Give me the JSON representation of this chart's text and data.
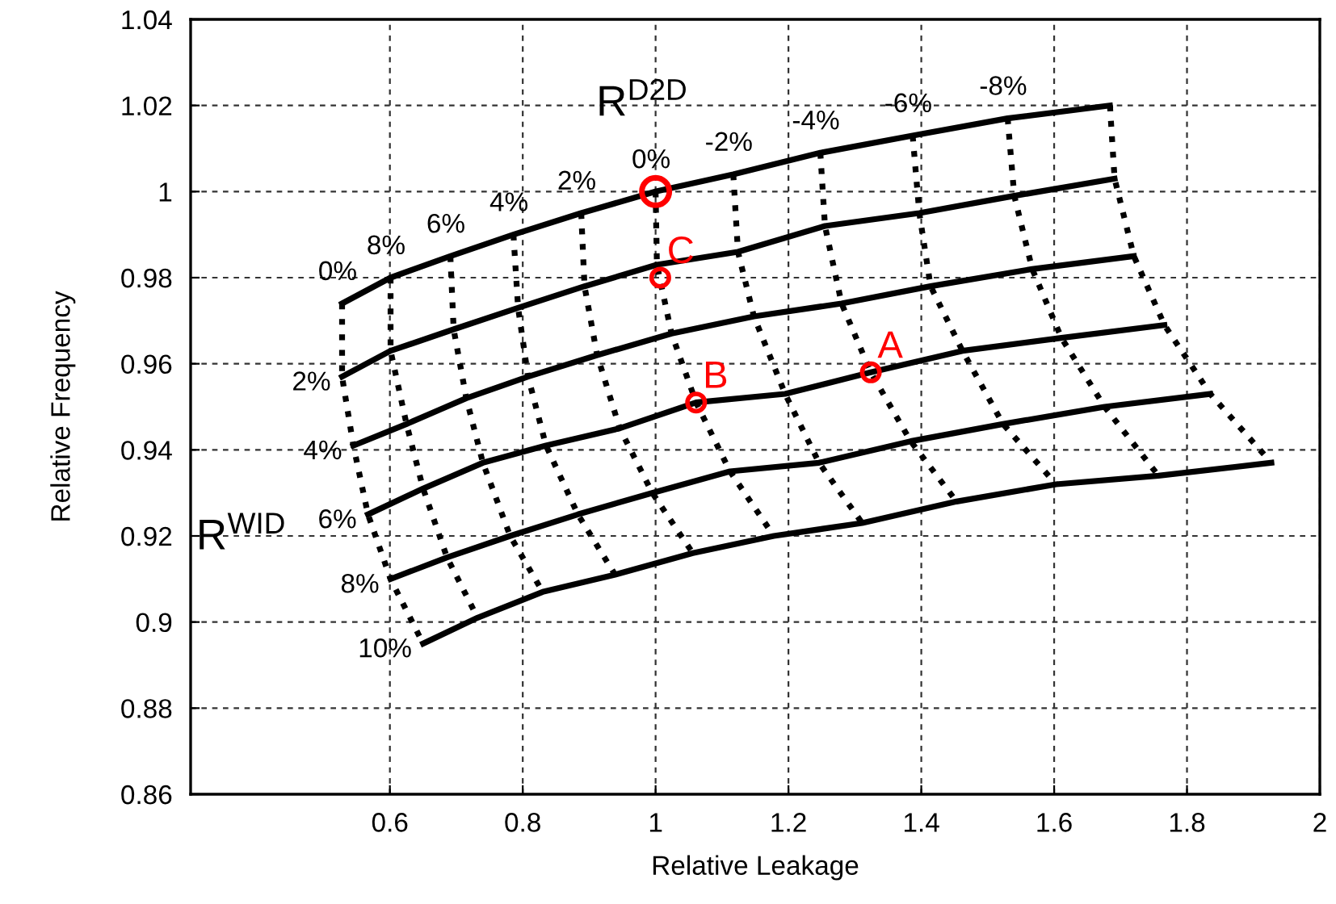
{
  "chart_data": {
    "type": "line",
    "xlabel": "Relative Leakage",
    "ylabel": "Relative Frequency",
    "xlim": [
      0.3,
      2
    ],
    "xticks": [
      0.6,
      0.8,
      1,
      1.2,
      1.4,
      1.6,
      1.8,
      2
    ],
    "ylim": [
      0.86,
      1.04
    ],
    "yticks": [
      0.86,
      0.88,
      0.9,
      0.92,
      0.94,
      0.96,
      0.98,
      1,
      1.02,
      1.04
    ],
    "grid": true,
    "series": [
      {
        "color": "#000000",
        "line_style": "solid",
        "x": [
          0.528,
          0.601,
          0.691,
          0.786,
          0.888,
          1.0,
          1.117,
          1.248,
          1.387,
          1.53,
          1.684
        ],
        "values": [
          0.974,
          0.98,
          0.985,
          0.99,
          0.995,
          1.0,
          1.004,
          1.009,
          1.013,
          1.017,
          1.02
        ]
      },
      {
        "color": "#000000",
        "line_style": "solid",
        "x": [
          0.528,
          0.601,
          0.696,
          0.793,
          0.893,
          1.002,
          1.124,
          1.255,
          1.397,
          1.54,
          1.691
        ],
        "values": [
          0.957,
          0.963,
          0.968,
          0.973,
          0.978,
          0.983,
          0.986,
          0.992,
          0.995,
          0.999,
          1.003
        ]
      },
      {
        "color": "#000000",
        "line_style": "solid",
        "x": [
          0.545,
          0.625,
          0.715,
          0.808,
          0.912,
          1.024,
          1.148,
          1.28,
          1.414,
          1.567,
          1.72
        ],
        "values": [
          0.941,
          0.946,
          0.952,
          0.957,
          0.962,
          0.967,
          0.971,
          0.974,
          0.978,
          0.982,
          0.985
        ]
      },
      {
        "color": "#000000",
        "line_style": "solid",
        "x": [
          0.567,
          0.65,
          0.74,
          0.835,
          0.946,
          1.061,
          1.195,
          1.324,
          1.462,
          1.611,
          1.766
        ],
        "values": [
          0.925,
          0.931,
          0.937,
          0.941,
          0.945,
          0.951,
          0.953,
          0.958,
          0.963,
          0.966,
          0.969
        ]
      },
      {
        "color": "#000000",
        "line_style": "solid",
        "x": [
          0.601,
          0.686,
          0.781,
          0.883,
          0.995,
          1.112,
          1.246,
          1.384,
          1.523,
          1.676,
          1.835
        ],
        "values": [
          0.91,
          0.915,
          0.92,
          0.925,
          0.93,
          0.935,
          0.937,
          0.942,
          0.946,
          0.95,
          0.953
        ]
      },
      {
        "color": "#000000",
        "line_style": "solid",
        "x": [
          0.65,
          0.732,
          0.83,
          0.939,
          1.056,
          1.178,
          1.311,
          1.453,
          1.603,
          1.757,
          1.927
        ],
        "values": [
          0.895,
          0.901,
          0.907,
          0.911,
          0.916,
          0.92,
          0.923,
          0.928,
          0.932,
          0.934,
          0.937
        ]
      },
      {
        "color": "#000000",
        "line_style": "dotted",
        "x": [
          0.528,
          0.528,
          0.545,
          0.567,
          0.601,
          0.65
        ],
        "values": [
          0.974,
          0.957,
          0.941,
          0.925,
          0.91,
          0.895
        ]
      },
      {
        "color": "#000000",
        "line_style": "dotted",
        "x": [
          0.601,
          0.601,
          0.625,
          0.65,
          0.686,
          0.732
        ],
        "values": [
          0.98,
          0.963,
          0.946,
          0.931,
          0.915,
          0.901
        ]
      },
      {
        "color": "#000000",
        "line_style": "dotted",
        "x": [
          0.691,
          0.696,
          0.715,
          0.74,
          0.781,
          0.83
        ],
        "values": [
          0.985,
          0.968,
          0.952,
          0.937,
          0.92,
          0.907
        ]
      },
      {
        "color": "#000000",
        "line_style": "dotted",
        "x": [
          0.786,
          0.793,
          0.808,
          0.835,
          0.883,
          0.939
        ],
        "values": [
          0.99,
          0.973,
          0.957,
          0.941,
          0.925,
          0.911
        ]
      },
      {
        "color": "#000000",
        "line_style": "dotted",
        "x": [
          0.888,
          0.893,
          0.912,
          0.946,
          0.995,
          1.056
        ],
        "values": [
          0.995,
          0.978,
          0.962,
          0.945,
          0.93,
          0.916
        ]
      },
      {
        "color": "#000000",
        "line_style": "dotted",
        "x": [
          1.0,
          1.002,
          1.024,
          1.061,
          1.112,
          1.178
        ],
        "values": [
          1.0,
          0.983,
          0.967,
          0.951,
          0.935,
          0.92
        ]
      },
      {
        "color": "#000000",
        "line_style": "dotted",
        "x": [
          1.117,
          1.124,
          1.148,
          1.195,
          1.246,
          1.311
        ],
        "values": [
          1.004,
          0.986,
          0.971,
          0.953,
          0.937,
          0.923
        ]
      },
      {
        "color": "#000000",
        "line_style": "dotted",
        "x": [
          1.248,
          1.255,
          1.28,
          1.324,
          1.384,
          1.453
        ],
        "values": [
          1.009,
          0.992,
          0.974,
          0.958,
          0.942,
          0.928
        ]
      },
      {
        "color": "#000000",
        "line_style": "dotted",
        "x": [
          1.387,
          1.397,
          1.414,
          1.462,
          1.523,
          1.603
        ],
        "values": [
          1.013,
          0.995,
          0.978,
          0.963,
          0.946,
          0.932
        ]
      },
      {
        "color": "#000000",
        "line_style": "dotted",
        "x": [
          1.53,
          1.54,
          1.567,
          1.611,
          1.676,
          1.757
        ],
        "values": [
          1.017,
          0.999,
          0.982,
          0.966,
          0.95,
          0.934
        ]
      },
      {
        "color": "#000000",
        "line_style": "dotted",
        "x": [
          1.684,
          1.691,
          1.72,
          1.766,
          1.835,
          1.927
        ],
        "values": [
          1.02,
          1.003,
          0.985,
          0.969,
          0.953,
          0.937
        ]
      },
      {
        "type": "scatter",
        "color": "#ff0000",
        "marker": "circle",
        "x": [
          1.0
        ],
        "values": [
          1.0
        ]
      },
      {
        "type": "scatter",
        "color": "#ff0000",
        "marker": "circle",
        "x": [
          1.007,
          1.061,
          1.324
        ],
        "values": [
          0.98,
          0.951,
          0.958
        ]
      }
    ],
    "annotations": [
      {
        "text": "A",
        "x": 1.324,
        "y": 0.958
      },
      {
        "text": "B",
        "x": 1.061,
        "y": 0.951
      },
      {
        "text": "C",
        "x": 1.007,
        "y": 0.98
      },
      {
        "text": "8%",
        "x": 0.601,
        "y": 0.98
      },
      {
        "text": "6%",
        "x": 0.691,
        "y": 0.985
      },
      {
        "text": "4%",
        "x": 0.786,
        "y": 0.99
      },
      {
        "text": "2%",
        "x": 0.888,
        "y": 0.995
      },
      {
        "text": "0%",
        "x": 1.0,
        "y": 1.0
      },
      {
        "text": "-2%",
        "x": 1.117,
        "y": 1.004
      },
      {
        "text": "-4%",
        "x": 1.248,
        "y": 1.009
      },
      {
        "text": "-6%",
        "x": 1.387,
        "y": 1.013
      },
      {
        "text": "-8%",
        "x": 1.53,
        "y": 1.017
      },
      {
        "text": "0%",
        "x": 0.528,
        "y": 0.974
      },
      {
        "text": "2%",
        "x": 0.528,
        "y": 0.957
      },
      {
        "text": "4%",
        "x": 0.545,
        "y": 0.941
      },
      {
        "text": "6%",
        "x": 0.567,
        "y": 0.925
      },
      {
        "text": "8%",
        "x": 0.601,
        "y": 0.91
      },
      {
        "text": "10%",
        "x": 0.65,
        "y": 0.895
      },
      "R$^{D2D}$",
      "R$^{WID}$"
    ]
  }
}
